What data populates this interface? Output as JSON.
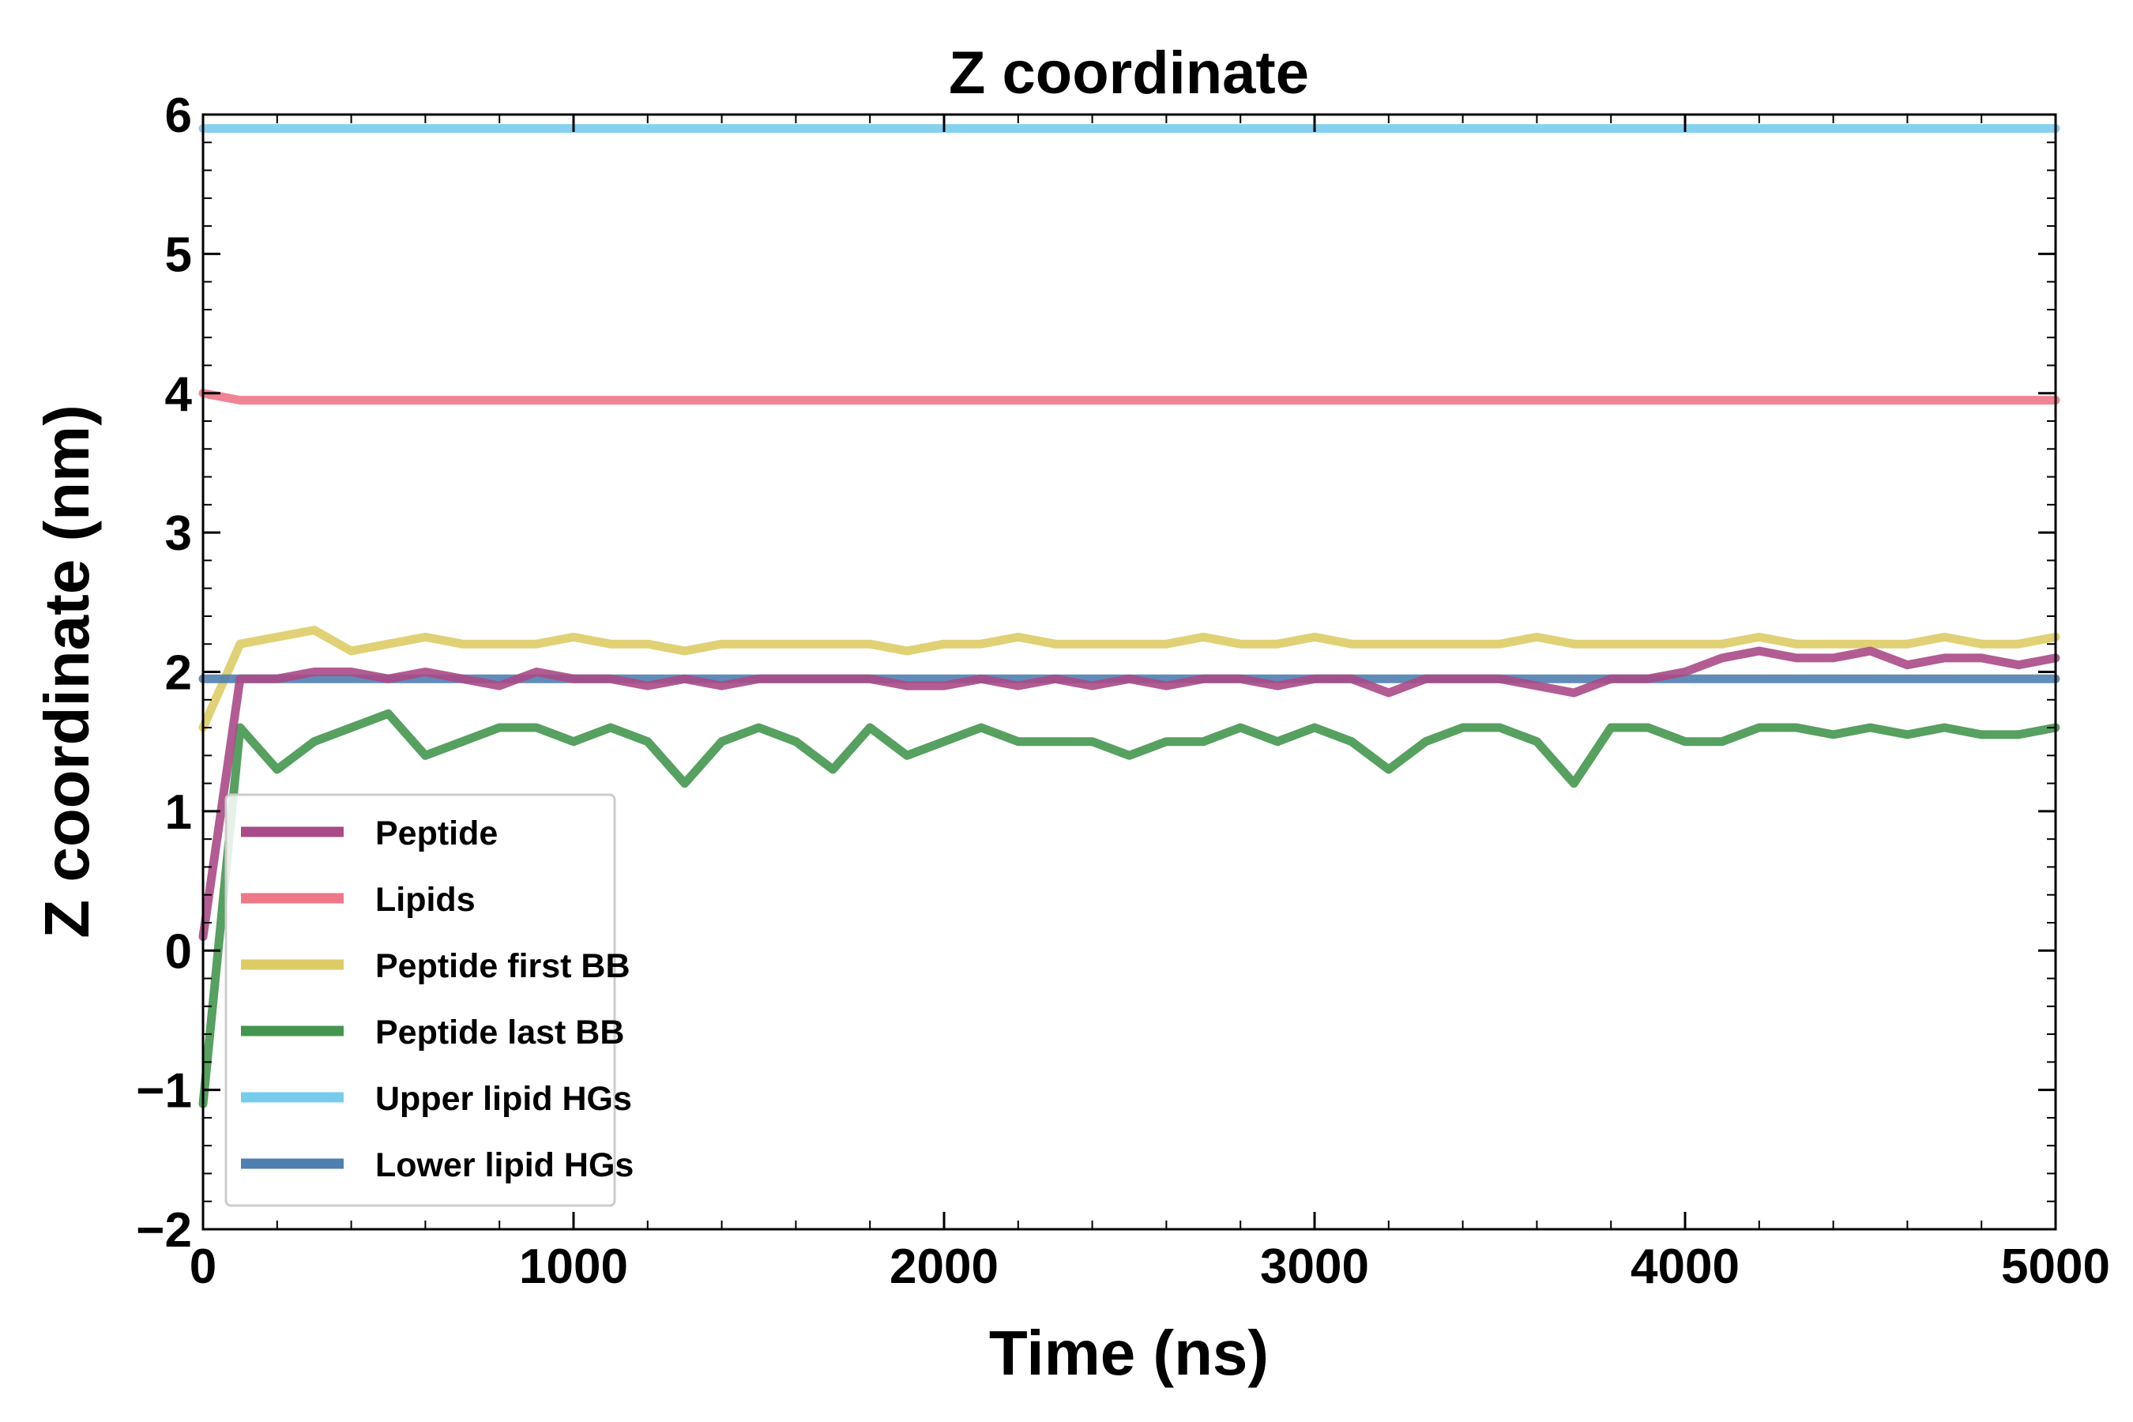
{
  "chart_data": {
    "type": "line",
    "title": "Z coordinate",
    "xlabel": "Time (ns)",
    "ylabel": "Z coordinate (nm)",
    "xlim": [
      0,
      5000
    ],
    "ylim": [
      -2,
      6
    ],
    "xticks": [
      "0",
      "1000",
      "2000",
      "3000",
      "4000",
      "5000"
    ],
    "yticks": [
      "−2",
      "−1",
      "0",
      "1",
      "2",
      "3",
      "4",
      "5",
      "6"
    ],
    "grid": false,
    "legend_position": "lower-left",
    "x": [
      0,
      100,
      200,
      300,
      400,
      500,
      600,
      700,
      800,
      900,
      1000,
      1100,
      1200,
      1300,
      1400,
      1500,
      1600,
      1700,
      1800,
      1900,
      2000,
      2100,
      2200,
      2300,
      2400,
      2500,
      2600,
      2700,
      2800,
      2900,
      3000,
      3100,
      3200,
      3300,
      3400,
      3500,
      3600,
      3700,
      3800,
      3900,
      4000,
      4100,
      4200,
      4300,
      4400,
      4500,
      4600,
      4700,
      4800,
      4900,
      5000
    ],
    "series": [
      {
        "name": "Peptide",
        "color": "#aa4a87",
        "values": [
          0.1,
          1.95,
          1.95,
          2.0,
          2.0,
          1.95,
          2.0,
          1.95,
          1.9,
          2.0,
          1.95,
          1.95,
          1.9,
          1.95,
          1.9,
          1.95,
          1.95,
          1.95,
          1.95,
          1.9,
          1.9,
          1.95,
          1.9,
          1.95,
          1.9,
          1.95,
          1.9,
          1.95,
          1.95,
          1.9,
          1.95,
          1.95,
          1.85,
          1.95,
          1.95,
          1.95,
          1.9,
          1.85,
          1.95,
          1.95,
          2.0,
          2.1,
          2.15,
          2.1,
          2.1,
          2.15,
          2.05,
          2.1,
          2.1,
          2.05,
          2.1
        ]
      },
      {
        "name": "Lipids",
        "color": "#ee7788",
        "values": [
          4.0,
          3.95,
          3.95,
          3.95,
          3.95,
          3.95,
          3.95,
          3.95,
          3.95,
          3.95,
          3.95,
          3.95,
          3.95,
          3.95,
          3.95,
          3.95,
          3.95,
          3.95,
          3.95,
          3.95,
          3.95,
          3.95,
          3.95,
          3.95,
          3.95,
          3.95,
          3.95,
          3.95,
          3.95,
          3.95,
          3.95,
          3.95,
          3.95,
          3.95,
          3.95,
          3.95,
          3.95,
          3.95,
          3.95,
          3.95,
          3.95,
          3.95,
          3.95,
          3.95,
          3.95,
          3.95,
          3.95,
          3.95,
          3.95,
          3.95,
          3.95
        ]
      },
      {
        "name": "Peptide first BB",
        "color": "#ddcc66",
        "values": [
          1.6,
          2.2,
          2.25,
          2.3,
          2.15,
          2.2,
          2.25,
          2.2,
          2.2,
          2.2,
          2.25,
          2.2,
          2.2,
          2.15,
          2.2,
          2.2,
          2.2,
          2.2,
          2.2,
          2.15,
          2.2,
          2.2,
          2.25,
          2.2,
          2.2,
          2.2,
          2.2,
          2.25,
          2.2,
          2.2,
          2.25,
          2.2,
          2.2,
          2.2,
          2.2,
          2.2,
          2.25,
          2.2,
          2.2,
          2.2,
          2.2,
          2.2,
          2.25,
          2.2,
          2.2,
          2.2,
          2.2,
          2.25,
          2.2,
          2.2,
          2.25
        ]
      },
      {
        "name": "Peptide last BB",
        "color": "#44964f",
        "values": [
          -1.1,
          1.6,
          1.3,
          1.5,
          1.6,
          1.7,
          1.4,
          1.5,
          1.6,
          1.6,
          1.5,
          1.6,
          1.5,
          1.2,
          1.5,
          1.6,
          1.5,
          1.3,
          1.6,
          1.4,
          1.5,
          1.6,
          1.5,
          1.5,
          1.5,
          1.4,
          1.5,
          1.5,
          1.6,
          1.5,
          1.6,
          1.5,
          1.3,
          1.5,
          1.6,
          1.6,
          1.5,
          1.2,
          1.6,
          1.6,
          1.5,
          1.5,
          1.6,
          1.6,
          1.55,
          1.6,
          1.55,
          1.6,
          1.55,
          1.55,
          1.6
        ]
      },
      {
        "name": "Upper lipid HGs",
        "color": "#77ccee",
        "values": [
          5.9,
          5.9,
          5.9,
          5.9,
          5.9,
          5.9,
          5.9,
          5.9,
          5.9,
          5.9,
          5.9,
          5.9,
          5.9,
          5.9,
          5.9,
          5.9,
          5.9,
          5.9,
          5.9,
          5.9,
          5.9,
          5.9,
          5.9,
          5.9,
          5.9,
          5.9,
          5.9,
          5.9,
          5.9,
          5.9,
          5.9,
          5.9,
          5.9,
          5.9,
          5.9,
          5.9,
          5.9,
          5.9,
          5.9,
          5.9,
          5.9,
          5.9,
          5.9,
          5.9,
          5.9,
          5.9,
          5.9,
          5.9,
          5.9,
          5.9,
          5.9
        ]
      },
      {
        "name": "Lower lipid HGs",
        "color": "#4f7fb0",
        "values": [
          1.95,
          1.95,
          1.95,
          1.95,
          1.95,
          1.95,
          1.95,
          1.95,
          1.95,
          1.95,
          1.95,
          1.95,
          1.95,
          1.95,
          1.95,
          1.95,
          1.95,
          1.95,
          1.95,
          1.95,
          1.95,
          1.95,
          1.95,
          1.95,
          1.95,
          1.95,
          1.95,
          1.95,
          1.95,
          1.95,
          1.95,
          1.95,
          1.95,
          1.95,
          1.95,
          1.95,
          1.95,
          1.95,
          1.95,
          1.95,
          1.95,
          1.95,
          1.95,
          1.95,
          1.95,
          1.95,
          1.95,
          1.95,
          1.95,
          1.95,
          1.95
        ]
      }
    ]
  }
}
